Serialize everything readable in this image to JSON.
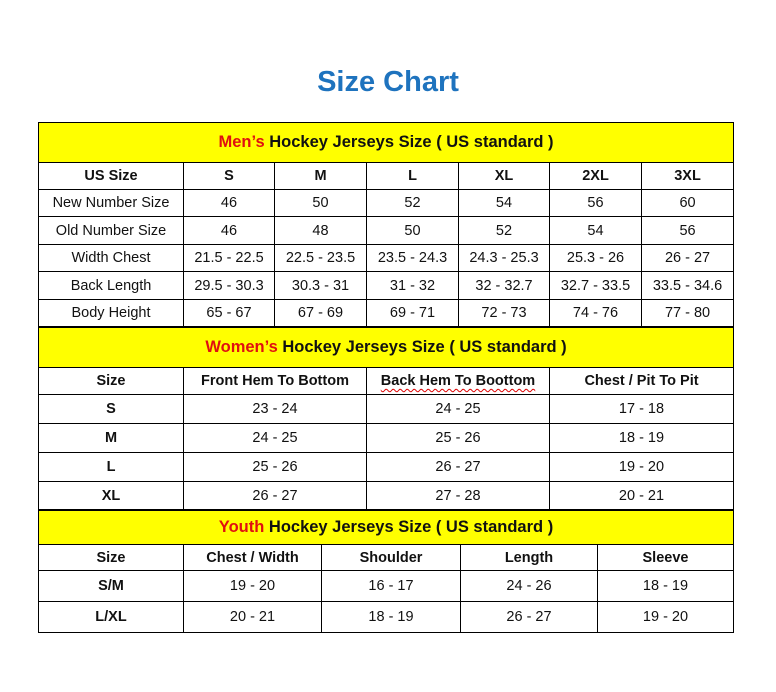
{
  "title": "Size Chart",
  "men": {
    "banner_highlight": "Men’s",
    "banner_rest": " Hockey Jerseys Size ( US standard )",
    "header": [
      "US Size",
      "S",
      "M",
      "L",
      "XL",
      "2XL",
      "3XL"
    ],
    "rows": [
      [
        "New Number Size",
        "46",
        "50",
        "52",
        "54",
        "56",
        "60"
      ],
      [
        "Old Number Size",
        "46",
        "48",
        "50",
        "52",
        "54",
        "56"
      ],
      [
        "Width Chest",
        "21.5 - 22.5",
        "22.5 - 23.5",
        "23.5 - 24.3",
        "24.3 - 25.3",
        "25.3 - 26",
        "26 - 27"
      ],
      [
        "Back Length",
        "29.5 - 30.3",
        "30.3 - 31",
        "31 - 32",
        "32 - 32.7",
        "32.7 - 33.5",
        "33.5 - 34.6"
      ],
      [
        "Body Height",
        "65 - 67",
        "67 - 69",
        "69 - 71",
        "72 - 73",
        "74 - 76",
        "77 - 80"
      ]
    ]
  },
  "women": {
    "banner_highlight": "Women’s",
    "banner_rest": " Hockey Jerseys Size ( US standard )",
    "header": [
      "Size",
      "Front Hem To Bottom",
      "Back Hem To Boottom",
      "Chest / Pit To Pit"
    ],
    "rows": [
      [
        "S",
        "23 - 24",
        "24 - 25",
        "17 - 18"
      ],
      [
        "M",
        "24 - 25",
        "25 - 26",
        "18 - 19"
      ],
      [
        "L",
        "25 - 26",
        "26 - 27",
        "19 - 20"
      ],
      [
        "XL",
        "26 - 27",
        "27 - 28",
        "20 - 21"
      ]
    ]
  },
  "youth": {
    "banner_highlight": "Youth",
    "banner_rest": " Hockey Jerseys Size ( US standard )",
    "header": [
      "Size",
      "Chest / Width",
      "Shoulder",
      "Length",
      "Sleeve"
    ],
    "rows": [
      [
        "S/M",
        "19 - 20",
        "16 - 17",
        "24 - 26",
        "18 - 19"
      ],
      [
        "L/XL",
        "20 - 21",
        "18 - 19",
        "26 - 27",
        "19 - 20"
      ]
    ]
  },
  "colors": {
    "title": "#1e73be",
    "banner_bg": "#ffff00",
    "highlight": "#e01010"
  }
}
